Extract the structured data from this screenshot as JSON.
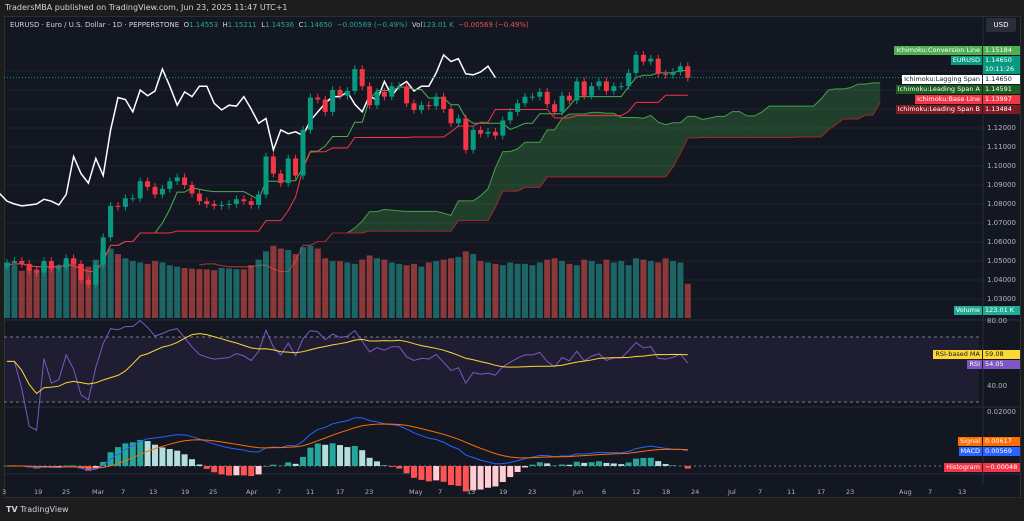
{
  "header": {
    "published": "TradersMBA published on TradingView.com, Jun 23, 2025 11:47 UTC+1",
    "symbol": "EURUSD · Euro / U.S. Dollar · 1D · PEPPERSTONE",
    "o_label": "O",
    "o": "1.14553",
    "h_label": "H",
    "h": "1.15211",
    "l_label": "L",
    "l": "1.14536",
    "c_label": "C",
    "c": "1.14650",
    "change": "−0.00569 (−0.49%)",
    "vol_label": "Vol",
    "vol": "123.01 K",
    "vol_change": "−0.00569 (−0.49%)",
    "currency": "USD"
  },
  "labels": {
    "conversion": {
      "name": "Ichimoku:Conversion Line",
      "value": "1.15184",
      "color": "#4caf50"
    },
    "price": {
      "name": "EURUSD",
      "value": "1.14650",
      "timer": "10:11:26",
      "color": "#089981"
    },
    "lagging": {
      "name": "Ichimoku:Lagging Span",
      "value": "1.14650",
      "color": "#ffffff"
    },
    "spanA": {
      "name": "Ichimoku:Leading Span A",
      "value": "1.14591",
      "color": "#1b5e20"
    },
    "base": {
      "name": "Ichimoku:Base Line",
      "value": "1.13997",
      "color": "#f23645"
    },
    "spanB": {
      "name": "Ichimoku:Leading Span B",
      "value": "1.13484",
      "color": "#801922"
    },
    "volume": {
      "name": "Volume",
      "value": "123.01 K",
      "color": "#22ab94"
    },
    "rsima": {
      "name": "RSI-based MA",
      "value": "59.08",
      "color": "#fdd835"
    },
    "rsi": {
      "name": "RSI",
      "value": "54.05",
      "color": "#7e57c2"
    },
    "signal": {
      "name": "Signal",
      "value": "0.00617",
      "color": "#ff6d00"
    },
    "macd": {
      "name": "MACD",
      "value": "0.00569",
      "color": "#2962ff"
    },
    "hist": {
      "name": "Histogram",
      "value": "−0.00048",
      "color": "#f23645"
    }
  },
  "price_axis": [
    "1.12000",
    "1.11000",
    "1.10000",
    "1.09000",
    "1.08000",
    "1.07000",
    "1.06000",
    "1.05000",
    "1.04000",
    "1.03000"
  ],
  "rsi_axis": [
    "80.00",
    "40.00"
  ],
  "macd_axis": [
    "0.02000"
  ],
  "time_axis": [
    "3",
    "19",
    "25",
    "Mar",
    "7",
    "13",
    "19",
    "25",
    "Apr",
    "7",
    "11",
    "17",
    "23",
    "May",
    "7",
    "13",
    "19",
    "23",
    "Jun",
    "6",
    "12",
    "18",
    "24",
    "Jul",
    "7",
    "11",
    "17",
    "23",
    "Aug",
    "7",
    "13"
  ],
  "footer": "TradingView",
  "chart_data": {
    "type": "candlestick",
    "title": "EURUSD · Euro / U.S. Dollar · 1D · PEPPERSTONE",
    "ylim": [
      1.025,
      1.165
    ],
    "x_range": [
      "2025-02-13",
      "2025-06-23"
    ],
    "close": [
      1.049,
      1.05,
      1.0485,
      1.045,
      1.044,
      1.05,
      1.046,
      1.0465,
      1.0515,
      1.0485,
      1.04,
      1.0375,
      1.048,
      1.0625,
      1.079,
      1.0785,
      1.083,
      1.083,
      1.092,
      1.089,
      1.085,
      1.088,
      1.092,
      1.094,
      1.09,
      1.0855,
      1.0815,
      1.08,
      1.079,
      1.0795,
      1.08,
      1.0825,
      1.0815,
      1.0795,
      1.085,
      1.105,
      1.096,
      1.091,
      1.104,
      1.095,
      1.119,
      1.136,
      1.135,
      1.1285,
      1.14,
      1.137,
      1.1395,
      1.151,
      1.142,
      1.132,
      1.139,
      1.1365,
      1.142,
      1.142,
      1.133,
      1.1295,
      1.132,
      1.1315,
      1.1365,
      1.13,
      1.1225,
      1.125,
      1.1085,
      1.119,
      1.117,
      1.118,
      1.116,
      1.124,
      1.1285,
      1.133,
      1.1365,
      1.1365,
      1.139,
      1.1325,
      1.1285,
      1.137,
      1.1345,
      1.1445,
      1.137,
      1.142,
      1.1445,
      1.1395,
      1.142,
      1.142,
      1.149,
      1.1585,
      1.155,
      1.1565,
      1.1485,
      1.148,
      1.1495,
      1.1525,
      1.1465
    ],
    "volume_k": [
      200,
      190,
      170,
      180,
      175,
      195,
      185,
      190,
      200,
      210,
      195,
      185,
      210,
      240,
      250,
      230,
      215,
      205,
      200,
      195,
      205,
      200,
      190,
      185,
      180,
      178,
      176,
      175,
      172,
      180,
      178,
      176,
      175,
      190,
      210,
      240,
      260,
      250,
      245,
      230,
      255,
      260,
      250,
      215,
      205,
      205,
      200,
      195,
      210,
      225,
      215,
      210,
      200,
      195,
      190,
      195,
      185,
      200,
      205,
      210,
      215,
      220,
      240,
      230,
      205,
      200,
      195,
      190,
      200,
      195,
      195,
      190,
      200,
      210,
      215,
      205,
      195,
      190,
      210,
      205,
      195,
      210,
      200,
      205,
      190,
      215,
      210,
      205,
      200,
      215,
      205,
      200,
      123.01
    ],
    "indicators": [
      "Ichimoku Cloud",
      "Volume",
      "RSI 14",
      "RSI-based MA",
      "MACD 12 26 9"
    ]
  }
}
